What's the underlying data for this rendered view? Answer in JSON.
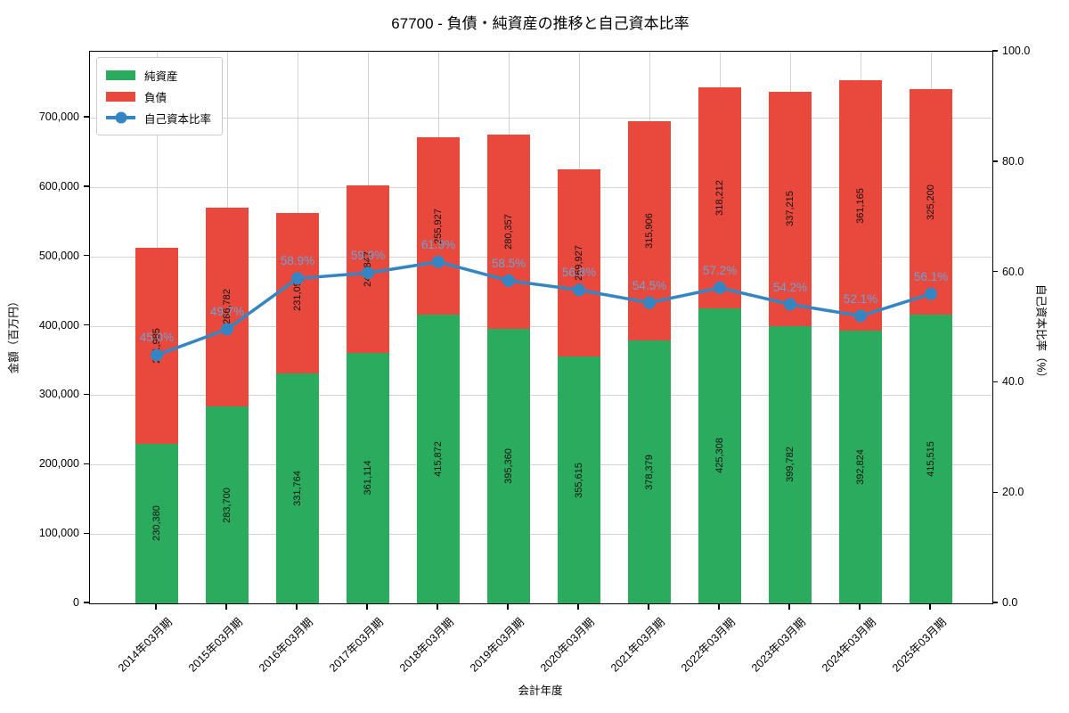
{
  "title": "67700 - 負債・純資産の推移と自己資本比率",
  "axes": {
    "x_label": "会計年度",
    "y_left_label": "金額（百万円）",
    "y_right_label": "自己資本比率（%）",
    "y_left_ticks": {
      "values": [
        0,
        100000,
        200000,
        300000,
        400000,
        500000,
        600000,
        700000
      ],
      "labels": [
        "0",
        "100,000",
        "200,000",
        "300,000",
        "400,000",
        "500,000",
        "600,000",
        "700,000"
      ]
    },
    "y_right_ticks": {
      "values": [
        0,
        20,
        40,
        60,
        80,
        100
      ],
      "labels": [
        "0.0",
        "20.0",
        "40.0",
        "60.0",
        "80.0",
        "100.0"
      ]
    }
  },
  "legend": {
    "items": [
      {
        "label": "純資産",
        "type": "bar",
        "color": "#2bab5e"
      },
      {
        "label": "負債",
        "type": "bar",
        "color": "#e8493c"
      },
      {
        "label": "自己資本比率",
        "type": "line",
        "color": "#3585c3"
      }
    ]
  },
  "colors": {
    "net_assets": "#2bab5e",
    "liabilities": "#e8493c",
    "equity_line": "#3585c3",
    "equity_label": "#6ba3d6",
    "grid": "#d3d3d3",
    "axis": "#000000",
    "background": "#ffffff"
  },
  "chart_data": {
    "type": "bar",
    "subtype": "stacked-bar-with-line",
    "title": "67700 - 負債・純資産の推移と自己資本比率",
    "xlabel": "会計年度",
    "ylabel_left": "金額（百万円）",
    "ylabel_right": "自己資本比率（%）",
    "ylim_left": [
      0,
      795000
    ],
    "ylim_right": [
      0,
      100
    ],
    "grid": true,
    "legend_position": "upper-left",
    "categories": [
      "2014年03月期",
      "2015年03月期",
      "2016年03月期",
      "2017年03月期",
      "2018年03月期",
      "2019年03月期",
      "2020年03月期",
      "2021年03月期",
      "2022年03月期",
      "2023年03月期",
      "2024年03月期",
      "2025年03月期"
    ],
    "series": [
      {
        "name": "純資産",
        "type": "bar",
        "stack": true,
        "axis": "left",
        "color": "#2bab5e",
        "values": [
          230380,
          283700,
          331764,
          361114,
          415872,
          395360,
          355615,
          378379,
          425308,
          399782,
          392824,
          415515
        ],
        "labels": [
          "230,380",
          "283,700",
          "331,764",
          "361,114",
          "415,872",
          "395,360",
          "355,615",
          "378,379",
          "425,308",
          "399,782",
          "392,824",
          "415,515"
        ]
      },
      {
        "name": "負債",
        "type": "bar",
        "stack": true,
        "axis": "left",
        "color": "#e8493c",
        "values": [
          281985,
          286782,
          231099,
          241847,
          255927,
          280357,
          269927,
          315906,
          318212,
          337215,
          361165,
          325200
        ],
        "labels": [
          "281,985",
          "286,782",
          "231,099",
          "241,847",
          "255,927",
          "280,357",
          "269,927",
          "315,906",
          "318,212",
          "337,215",
          "361,165",
          "325,200"
        ]
      },
      {
        "name": "自己資本比率",
        "type": "line",
        "axis": "right",
        "color": "#3585c3",
        "values": [
          45.0,
          49.7,
          58.9,
          59.9,
          61.9,
          58.5,
          56.8,
          54.5,
          57.2,
          54.2,
          52.1,
          56.1
        ],
        "labels": [
          "45.0%",
          "49.7%",
          "58.9%",
          "59.9%",
          "61.9%",
          "58.5%",
          "56.8%",
          "54.5%",
          "57.2%",
          "54.2%",
          "52.1%",
          "56.1%"
        ]
      }
    ]
  }
}
